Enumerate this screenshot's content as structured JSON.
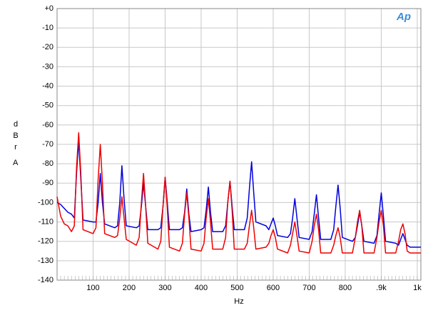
{
  "chart_data": {
    "type": "line",
    "x_label": "Hz",
    "y_label": "dBr",
    "y_unit": "A",
    "logo": "Ap",
    "xlim": [
      0,
      1010
    ],
    "ylim": [
      -140,
      0
    ],
    "xticks": [
      100,
      200,
      300,
      400,
      500,
      600,
      700,
      800,
      {
        "value": 900,
        "label": ".9k"
      },
      {
        "value": 1000,
        "label": "1k"
      }
    ],
    "yticks": [
      {
        "value": 0,
        "label": "+0"
      },
      -10,
      -20,
      -30,
      -40,
      -50,
      -60,
      -70,
      -80,
      -90,
      -100,
      -110,
      -120,
      -130,
      -140
    ],
    "grid": true,
    "x": [
      0,
      10,
      20,
      30,
      40,
      48,
      54,
      60,
      66,
      72,
      100,
      108,
      114,
      120,
      126,
      132,
      160,
      168,
      174,
      180,
      186,
      192,
      220,
      228,
      234,
      240,
      246,
      252,
      280,
      288,
      294,
      300,
      306,
      312,
      340,
      348,
      354,
      360,
      366,
      372,
      400,
      408,
      414,
      420,
      426,
      432,
      460,
      468,
      474,
      480,
      486,
      492,
      520,
      528,
      534,
      540,
      546,
      552,
      580,
      588,
      594,
      600,
      606,
      612,
      640,
      648,
      654,
      660,
      666,
      672,
      700,
      708,
      714,
      720,
      726,
      732,
      760,
      768,
      774,
      780,
      786,
      792,
      820,
      828,
      834,
      840,
      846,
      852,
      880,
      888,
      894,
      900,
      906,
      912,
      940,
      948,
      954,
      960,
      966,
      972,
      980,
      990,
      1000,
      1010
    ],
    "series": [
      {
        "color": "#0000dd",
        "values": [
          -100,
          -101,
          -103,
          -105,
          -106,
          -108,
          -85,
          -68,
          -88,
          -109,
          -110,
          -110,
          -100,
          -85,
          -100,
          -111,
          -113,
          -112,
          -100,
          -81,
          -98,
          -112,
          -113,
          -112,
          -102,
          -90,
          -102,
          -114,
          -114,
          -113,
          -102,
          -87,
          -100,
          -114,
          -114,
          -113,
          -105,
          -93,
          -106,
          -115,
          -114,
          -113,
          -104,
          -92,
          -105,
          -115,
          -115,
          -112,
          -100,
          -89,
          -102,
          -114,
          -114,
          -108,
          -93,
          -79,
          -95,
          -110,
          -112,
          -114,
          -111,
          -108,
          -112,
          -117,
          -118,
          -116,
          -108,
          -98,
          -108,
          -118,
          -119,
          -115,
          -106,
          -96,
          -108,
          -119,
          -119,
          -114,
          -102,
          -91,
          -103,
          -118,
          -120,
          -118,
          -112,
          -105,
          -112,
          -120,
          -121,
          -117,
          -106,
          -95,
          -107,
          -120,
          -121,
          -122,
          -119,
          -116,
          -119,
          -122,
          -123,
          -123,
          -123,
          -123
        ]
      },
      {
        "color": "#ee0000",
        "values": [
          -97,
          -107,
          -111,
          -112,
          -115,
          -112,
          -82,
          -64,
          -85,
          -114,
          -116,
          -113,
          -88,
          -70,
          -90,
          -116,
          -118,
          -117,
          -108,
          -97,
          -108,
          -119,
          -122,
          -118,
          -100,
          -85,
          -102,
          -121,
          -124,
          -120,
          -102,
          -87,
          -103,
          -123,
          -125,
          -121,
          -106,
          -95,
          -108,
          -124,
          -125,
          -121,
          -108,
          -98,
          -110,
          -124,
          -124,
          -118,
          -100,
          -89,
          -104,
          -124,
          -124,
          -121,
          -112,
          -104,
          -113,
          -124,
          -123,
          -121,
          -117,
          -114,
          -118,
          -124,
          -126,
          -122,
          -116,
          -110,
          -117,
          -125,
          -126,
          -120,
          -112,
          -106,
          -114,
          -126,
          -126,
          -122,
          -117,
          -113,
          -118,
          -126,
          -126,
          -118,
          -110,
          -104,
          -112,
          -126,
          -126,
          -118,
          -110,
          -104,
          -112,
          -126,
          -126,
          -120,
          -114,
          -111,
          -116,
          -125,
          -126,
          -126,
          -126,
          -126
        ]
      }
    ]
  }
}
